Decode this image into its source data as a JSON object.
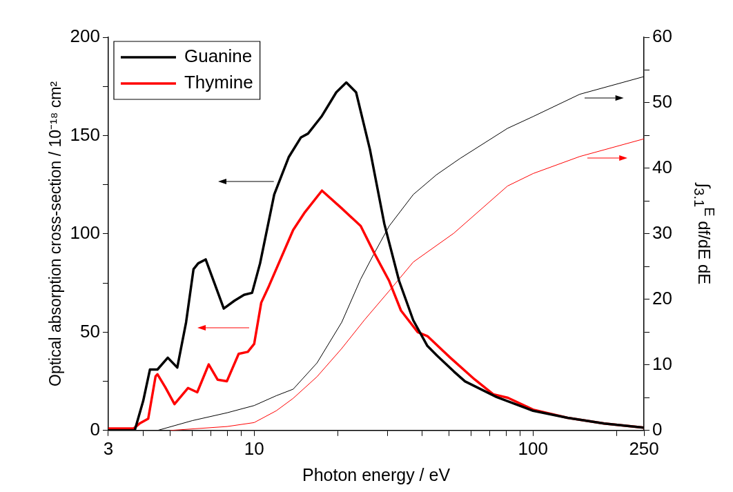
{
  "chart_data": {
    "type": "line",
    "xlabel": "Photon energy / eV",
    "ylabel": "Optical absorption cross-section / 10⁻¹⁸ cm²",
    "y2label": "∫$_{3.1}$$^{E}$ df/dE dE",
    "log": "x",
    "legend": "top left",
    "marker": "none",
    "grid": false,
    "xlim": [
      3,
      250
    ],
    "xticks": [
      3,
      {
        "value": 4,
        "label": null
      },
      {
        "value": 5,
        "label": null
      },
      {
        "value": 6,
        "label": null
      },
      {
        "value": 7,
        "label": null
      },
      {
        "value": 8,
        "label": null
      },
      {
        "value": 9,
        "label": null
      },
      10,
      {
        "value": 20,
        "label": null
      },
      {
        "value": 30,
        "label": null
      },
      {
        "value": 40,
        "label": null
      },
      {
        "value": 50,
        "label": null
      },
      {
        "value": 60,
        "label": null
      },
      {
        "value": 70,
        "label": null
      },
      {
        "value": 80,
        "label": null
      },
      {
        "value": 90,
        "label": null
      },
      100,
      {
        "value": 200,
        "label": null
      },
      250
    ],
    "ylim": [
      0,
      200
    ],
    "yticks": [
      0,
      {
        "value": 25,
        "label": null
      },
      50,
      {
        "value": 75,
        "label": null
      },
      100,
      {
        "value": 125,
        "label": null
      },
      150,
      {
        "value": 175,
        "label": null
      },
      200
    ],
    "y2lim": [
      0,
      60
    ],
    "y2ticks": [
      0,
      {
        "value": 5,
        "label": null
      },
      10,
      {
        "value": 15,
        "label": null
      },
      20,
      {
        "value": 25,
        "label": null
      },
      30,
      {
        "value": 35,
        "label": null
      },
      40,
      {
        "value": 45,
        "label": null
      },
      50,
      {
        "value": 55,
        "label": null
      },
      60
    ],
    "series": [
      {
        "name": "Guanine",
        "type": "line",
        "color": "#000000",
        "x": [
          3,
          3.73,
          4.0,
          4.23,
          4.5,
          4.9,
          5.3,
          5.7,
          6.06,
          6.3,
          6.7,
          7.2,
          7.78,
          8.5,
          9.2,
          9.83,
          10.5,
          11.8,
          13.3,
          14.7,
          15.6,
          17.5,
          19.7,
          21.4,
          23.2,
          26.0,
          29.3,
          33.1,
          37.2,
          41.8,
          45.3,
          52,
          57,
          74,
          100,
          133,
          180,
          250
        ],
        "values": [
          0,
          0,
          15,
          31,
          31,
          37,
          32,
          55,
          82,
          85,
          87,
          75,
          62,
          66,
          69,
          70,
          85,
          120,
          139,
          149,
          151,
          160,
          172,
          177,
          172,
          143,
          105,
          76,
          56,
          43,
          38,
          30,
          25,
          17,
          10,
          6.4,
          3.5,
          1.4
        ]
      },
      {
        "name": "Thymine",
        "type": "line",
        "color": "#ff0000",
        "x": [
          3,
          3.7,
          3.88,
          4.17,
          4.43,
          4.5,
          4.8,
          5.18,
          5.79,
          6.25,
          6.87,
          7.4,
          7.98,
          8.8,
          9.49,
          10,
          10.6,
          11.3,
          13.8,
          15.2,
          17.5,
          20.6,
          24.1,
          27,
          30.5,
          33.6,
          38.6,
          41.8,
          50.5,
          61.7,
          72,
          81.3,
          100,
          133,
          180,
          250
        ],
        "values": [
          1,
          1,
          3.5,
          6,
          27.5,
          28.6,
          22,
          13.4,
          21.6,
          19.4,
          33.6,
          25.8,
          25,
          39,
          40,
          44,
          65,
          73.5,
          102,
          111,
          122,
          113,
          104,
          90,
          76,
          61,
          50,
          48,
          37,
          26,
          18.4,
          16.6,
          10.6,
          6.4,
          3.5,
          1.4
        ]
      },
      {
        "type": "line",
        "axis": "y2",
        "color": "#000000",
        "x": [
          4.5,
          6,
          8,
          10,
          12,
          13.8,
          16.8,
          20.6,
          24.1,
          27,
          30.5,
          37.2,
          45,
          54.7,
          81,
          100,
          147,
          250
        ],
        "values": [
          0,
          1.5,
          2.7,
          3.8,
          5.3,
          6.3,
          10.3,
          16.5,
          23.1,
          27.1,
          31.2,
          36,
          39,
          41.5,
          46.1,
          47.9,
          51.3,
          54
        ]
      },
      {
        "type": "line",
        "axis": "y2",
        "color": "#ff0000",
        "x": [
          5,
          8,
          10,
          12,
          13.8,
          16.8,
          20.6,
          24.9,
          30.5,
          37.2,
          52,
          81,
          100,
          147,
          250
        ],
        "values": [
          0,
          0.6,
          1.2,
          3,
          4.9,
          8.2,
          12.5,
          16.9,
          21.3,
          25.7,
          30.1,
          37.3,
          39.2,
          41.8,
          44.5
        ]
      }
    ]
  }
}
